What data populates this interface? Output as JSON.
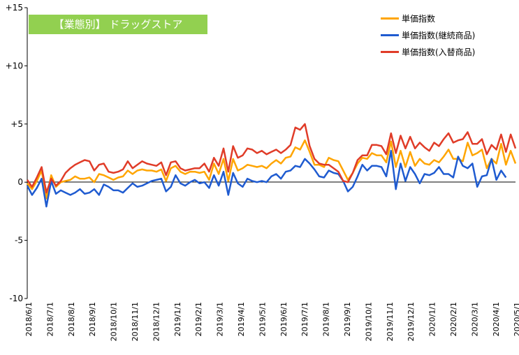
{
  "chart_data": {
    "type": "line",
    "title": "【業態別】 ドラッグストア",
    "ylim": [
      -10,
      15
    ],
    "y_ticks": [
      "+15",
      "+10",
      "+5",
      "0",
      "-5",
      "-10"
    ],
    "x_tick_labels": [
      "2018/6/1",
      "2018/7/1",
      "2018/8/1",
      "2018/9/1",
      "2018/10/1",
      "2018/11/1",
      "2018/12/1",
      "2019/1/1",
      "2019/2/1",
      "2019/3/1",
      "2019/4/1",
      "2019/5/1",
      "2019/6/1",
      "2019/7/1",
      "2019/8/1",
      "2019/9/1",
      "2019/10/1",
      "2019/11/1",
      "2019/12/1",
      "2020/1/1",
      "2020/2/1",
      "2020/3/1",
      "2020/4/1",
      "2020/5/1"
    ],
    "legend_position": "top-right",
    "grid": false,
    "series": [
      {
        "name": "単価指数",
        "color": "#ffa500",
        "values": [
          -0.1,
          -0.6,
          0.1,
          1.0,
          -1.4,
          0.6,
          -0.4,
          0.0,
          0.1,
          0.2,
          0.5,
          0.3,
          0.3,
          0.4,
          0.0,
          0.7,
          0.6,
          0.4,
          0.2,
          0.4,
          0.5,
          1.0,
          0.7,
          1.0,
          1.1,
          1.0,
          1.0,
          0.9,
          1.1,
          0.1,
          1.2,
          1.4,
          0.9,
          0.7,
          0.9,
          0.9,
          0.8,
          0.9,
          0.2,
          1.6,
          0.7,
          2.0,
          0.1,
          2.0,
          1.0,
          1.2,
          1.5,
          1.4,
          1.3,
          1.4,
          1.2,
          1.6,
          1.9,
          1.6,
          2.1,
          2.2,
          3.0,
          2.8,
          3.6,
          2.6,
          1.5,
          1.5,
          1.3,
          2.1,
          1.9,
          1.8,
          1.0,
          0.2,
          0.8,
          1.6,
          2.1,
          2.0,
          2.5,
          2.3,
          2.3,
          1.7,
          3.5,
          1.3,
          2.7,
          1.3,
          2.6,
          1.4,
          2.0,
          1.6,
          1.5,
          1.9,
          1.7,
          2.2,
          2.8,
          2.0,
          2.0,
          1.8,
          3.4,
          2.3,
          2.5,
          2.8,
          1.2,
          2.0,
          1.6,
          3.3,
          1.5,
          2.7,
          1.6
        ]
      },
      {
        "name": "単価指数(継続商品)",
        "color": "#1f5bd0",
        "values": [
          -0.3,
          -1.1,
          -0.5,
          0.3,
          -2.1,
          0.1,
          -1.0,
          -0.7,
          -0.9,
          -1.1,
          -0.9,
          -0.6,
          -1.0,
          -0.9,
          -0.6,
          -1.1,
          -0.2,
          -0.4,
          -0.7,
          -0.7,
          -0.9,
          -0.5,
          -0.1,
          -0.4,
          -0.3,
          -0.1,
          0.1,
          0.2,
          0.3,
          -0.8,
          -0.4,
          0.6,
          -0.1,
          -0.3,
          0.0,
          0.2,
          -0.1,
          0.0,
          -0.5,
          0.6,
          -0.3,
          0.9,
          -1.1,
          0.8,
          -0.1,
          -0.4,
          0.3,
          0.1,
          0.0,
          0.1,
          0.0,
          0.5,
          0.7,
          0.3,
          0.9,
          1.0,
          1.4,
          1.3,
          2.0,
          1.6,
          1.1,
          0.5,
          0.4,
          1.0,
          0.8,
          0.7,
          0.1,
          -0.8,
          -0.4,
          0.5,
          1.5,
          1.0,
          1.4,
          1.4,
          1.3,
          0.5,
          2.7,
          -0.6,
          1.6,
          0.1,
          1.3,
          0.7,
          -0.1,
          0.7,
          0.6,
          0.8,
          1.3,
          0.7,
          0.7,
          0.4,
          2.2,
          1.4,
          1.2,
          1.6,
          -0.4,
          0.5,
          0.6,
          2.0,
          0.2,
          1.0,
          0.4
        ]
      },
      {
        "name": "単価指数(入替商品)",
        "color": "#e03c28",
        "values": [
          0.2,
          -0.4,
          0.4,
          1.3,
          -0.9,
          0.3,
          -0.3,
          0.1,
          0.8,
          1.2,
          1.5,
          1.7,
          1.9,
          1.8,
          1.0,
          1.5,
          1.6,
          0.9,
          0.8,
          0.9,
          1.1,
          1.8,
          1.2,
          1.5,
          1.8,
          1.6,
          1.5,
          1.4,
          1.7,
          0.6,
          1.7,
          1.8,
          1.2,
          1.0,
          1.1,
          1.2,
          1.2,
          1.6,
          0.9,
          2.1,
          1.4,
          2.9,
          0.9,
          3.1,
          2.1,
          2.3,
          2.9,
          2.8,
          2.5,
          2.7,
          2.4,
          2.6,
          2.8,
          2.5,
          2.8,
          3.2,
          4.7,
          4.5,
          5.0,
          3.1,
          2.0,
          1.6,
          1.5,
          1.5,
          1.2,
          0.9,
          0.1,
          0.0,
          0.8,
          1.9,
          2.3,
          2.3,
          3.2,
          3.2,
          3.1,
          2.4,
          4.2,
          2.5,
          4.0,
          2.9,
          3.9,
          2.9,
          3.4,
          3.0,
          2.7,
          3.4,
          3.1,
          3.7,
          4.2,
          3.4,
          3.6,
          3.7,
          4.3,
          3.3,
          3.3,
          3.7,
          2.4,
          3.2,
          2.8,
          4.1,
          2.6,
          4.1,
          2.9
        ]
      }
    ]
  }
}
